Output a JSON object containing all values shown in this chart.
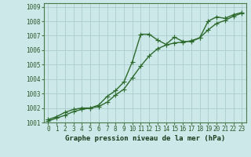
{
  "title": "Graphe pression niveau de la mer (hPa)",
  "bg_color": "#cce8e8",
  "grid_color": "#aacccc",
  "line_color": "#2d6a2d",
  "series1": {
    "x": [
      0,
      1,
      2,
      3,
      4,
      5,
      6,
      7,
      8,
      9,
      10,
      11,
      12,
      13,
      14,
      15,
      16,
      17,
      18,
      19,
      20,
      21,
      22,
      23
    ],
    "y": [
      1001.2,
      1001.4,
      1001.7,
      1001.9,
      1002.0,
      1002.0,
      1002.2,
      1002.8,
      1003.2,
      1003.8,
      1005.2,
      1007.1,
      1007.1,
      1006.7,
      1006.4,
      1006.9,
      1006.6,
      1006.6,
      1006.85,
      1008.0,
      1008.3,
      1008.2,
      1008.45,
      1008.6
    ]
  },
  "series2": {
    "x": [
      0,
      1,
      2,
      3,
      4,
      5,
      6,
      7,
      8,
      9,
      10,
      11,
      12,
      13,
      14,
      15,
      16,
      17,
      18,
      19,
      20,
      21,
      22,
      23
    ],
    "y": [
      1001.1,
      1001.3,
      1001.5,
      1001.75,
      1001.9,
      1002.0,
      1002.1,
      1002.4,
      1002.9,
      1003.3,
      1004.1,
      1004.9,
      1005.6,
      1006.1,
      1006.35,
      1006.5,
      1006.55,
      1006.65,
      1006.85,
      1007.4,
      1007.85,
      1008.05,
      1008.35,
      1008.55
    ]
  },
  "ylim": [
    1001.0,
    1009.25
  ],
  "yticks": [
    1001,
    1002,
    1003,
    1004,
    1005,
    1006,
    1007,
    1008,
    1009
  ],
  "xlim": [
    -0.5,
    23.5
  ],
  "xticks": [
    0,
    1,
    2,
    3,
    4,
    5,
    6,
    7,
    8,
    9,
    10,
    11,
    12,
    13,
    14,
    15,
    16,
    17,
    18,
    19,
    20,
    21,
    22,
    23
  ],
  "marker": "+",
  "marker_size": 4.0,
  "line_width": 1.0,
  "tick_fontsize": 5.5,
  "title_fontsize": 6.5
}
